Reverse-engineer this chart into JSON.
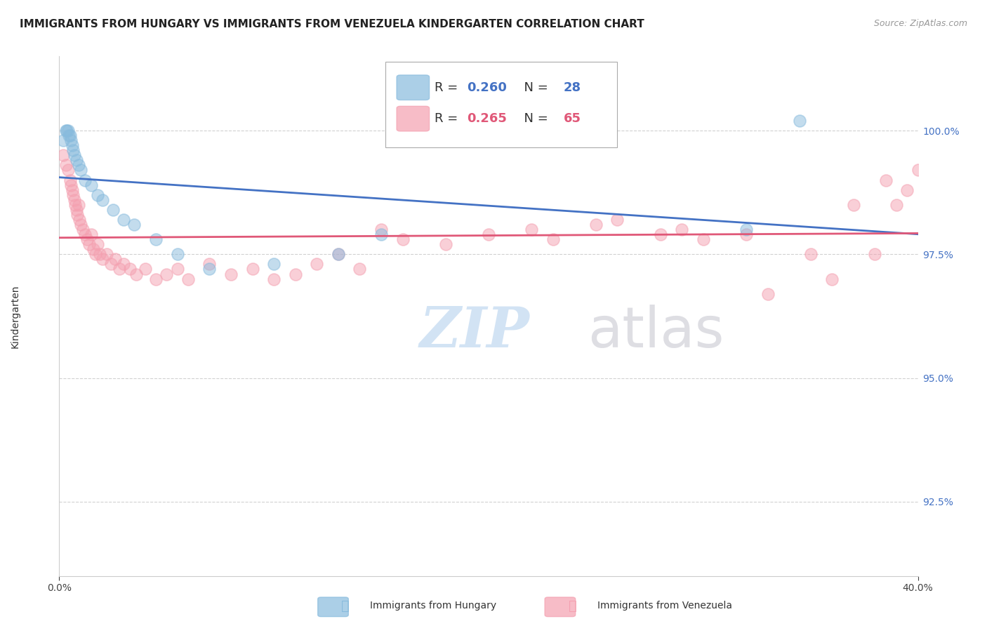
{
  "title": "IMMIGRANTS FROM HUNGARY VS IMMIGRANTS FROM VENEZUELA KINDERGARTEN CORRELATION CHART",
  "source": "Source: ZipAtlas.com",
  "ylabel": "Kindergarten",
  "xlim": [
    0.0,
    40.0
  ],
  "ylim": [
    91.0,
    101.5
  ],
  "yticks": [
    92.5,
    95.0,
    97.5,
    100.0
  ],
  "ytick_labels": [
    "92.5%",
    "95.0%",
    "97.5%",
    "100.0%"
  ],
  "xticks": [
    0.0,
    40.0
  ],
  "xtick_labels": [
    "0.0%",
    "40.0%"
  ],
  "hungary_color": "#88bbdd",
  "venezuela_color": "#f4a0b0",
  "hungary_line_color": "#4472c4",
  "venezuela_line_color": "#e05878",
  "hungary_R": 0.26,
  "hungary_N": 28,
  "venezuela_R": 0.265,
  "venezuela_N": 65,
  "hungary_x": [
    0.2,
    0.3,
    0.35,
    0.4,
    0.45,
    0.5,
    0.55,
    0.6,
    0.65,
    0.7,
    0.8,
    0.9,
    1.0,
    1.2,
    1.5,
    1.8,
    2.0,
    2.5,
    3.0,
    3.5,
    4.5,
    5.5,
    7.0,
    10.0,
    13.0,
    15.0,
    32.0,
    34.5
  ],
  "hungary_y": [
    99.8,
    100.0,
    100.0,
    100.0,
    99.9,
    99.9,
    99.8,
    99.7,
    99.6,
    99.5,
    99.4,
    99.3,
    99.2,
    99.0,
    98.9,
    98.7,
    98.6,
    98.4,
    98.2,
    98.1,
    97.8,
    97.5,
    97.2,
    97.3,
    97.5,
    97.9,
    98.0,
    100.2
  ],
  "venezuela_x": [
    0.2,
    0.3,
    0.4,
    0.5,
    0.55,
    0.6,
    0.65,
    0.7,
    0.75,
    0.8,
    0.85,
    0.9,
    0.95,
    1.0,
    1.1,
    1.2,
    1.3,
    1.4,
    1.5,
    1.6,
    1.7,
    1.8,
    1.9,
    2.0,
    2.2,
    2.4,
    2.6,
    2.8,
    3.0,
    3.3,
    3.6,
    4.0,
    4.5,
    5.0,
    5.5,
    6.0,
    7.0,
    8.0,
    9.0,
    10.0,
    11.0,
    12.0,
    13.0,
    14.0,
    15.0,
    16.0,
    18.0,
    20.0,
    22.0,
    23.0,
    25.0,
    26.0,
    28.0,
    29.0,
    30.0,
    32.0,
    33.0,
    35.0,
    36.0,
    37.0,
    38.0,
    38.5,
    39.0,
    39.5,
    40.0
  ],
  "venezuela_y": [
    99.5,
    99.3,
    99.2,
    99.0,
    98.9,
    98.8,
    98.7,
    98.6,
    98.5,
    98.4,
    98.3,
    98.5,
    98.2,
    98.1,
    98.0,
    97.9,
    97.8,
    97.7,
    97.9,
    97.6,
    97.5,
    97.7,
    97.5,
    97.4,
    97.5,
    97.3,
    97.4,
    97.2,
    97.3,
    97.2,
    97.1,
    97.2,
    97.0,
    97.1,
    97.2,
    97.0,
    97.3,
    97.1,
    97.2,
    97.0,
    97.1,
    97.3,
    97.5,
    97.2,
    98.0,
    97.8,
    97.7,
    97.9,
    98.0,
    97.8,
    98.1,
    98.2,
    97.9,
    98.0,
    97.8,
    97.9,
    96.7,
    97.5,
    97.0,
    98.5,
    97.5,
    99.0,
    98.5,
    98.8,
    99.2
  ],
  "background_color": "#ffffff",
  "grid_color": "#cccccc",
  "title_fontsize": 11,
  "axis_label_fontsize": 10,
  "tick_fontsize": 10,
  "legend_fontsize": 13,
  "watermark_zip_color": "#c0d8f0",
  "watermark_atlas_color": "#d0d0d8"
}
